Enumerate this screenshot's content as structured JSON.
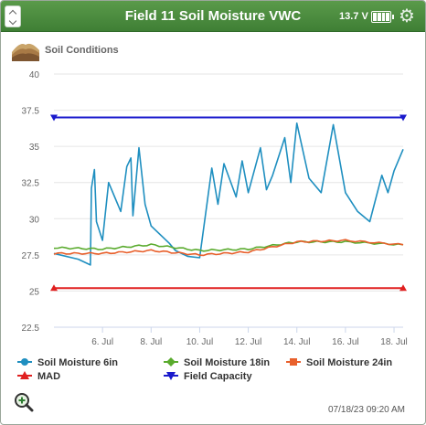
{
  "header": {
    "title": "Field 11 Soil Moisture VWC",
    "voltage": "13.7 V"
  },
  "icons": {
    "collapse": "collapse-chevrons-icon",
    "battery": "battery-icon",
    "settings": "gear-icon",
    "soil": "soil-layers-icon",
    "zoom": "zoom-in-icon"
  },
  "section": {
    "label": "Soil Conditions"
  },
  "footer": {
    "timestamp": "07/18/23 09:20 AM"
  },
  "colors": {
    "header": "#4a8a3e",
    "moisture_6in": "#1f8fc0",
    "moisture_18in": "#5aab2e",
    "moisture_24in": "#e8602c",
    "mad": "#e02020",
    "field_capacity": "#1a1acc"
  },
  "chart_data": {
    "type": "line",
    "x_start": "2023-07-04",
    "x_end": "2023-07-18",
    "x_tick_labels": [
      "6. Jul",
      "8. Jul",
      "10. Jul",
      "12. Jul",
      "14. Jul",
      "16. Jul",
      "18. Jul"
    ],
    "ylim": [
      22.5,
      40
    ],
    "y_ticks": [
      22.5,
      25,
      27.5,
      30,
      32.5,
      35,
      37.5,
      40
    ],
    "grid": true,
    "legend_placement": "bottom",
    "series": [
      {
        "name": "Soil Moisture 6in",
        "color": "#1f8fc0",
        "marker": "circle",
        "x": [
          "07-04",
          "07-05 00:00",
          "07-05 12:00",
          "07-05 13:00",
          "07-05 16:00",
          "07-05 18:00",
          "07-06 00:00",
          "07-06 06:00",
          "07-06 18:00",
          "07-07 00:00",
          "07-07 04:00",
          "07-07 06:00",
          "07-07 12:00",
          "07-07 18:00",
          "07-08 00:00",
          "07-08 18:00",
          "07-09 00:00",
          "07-09 12:00",
          "07-10 00:00",
          "07-10 12:00",
          "07-10 18:00",
          "07-11 00:00",
          "07-11 12:00",
          "07-11 18:00",
          "07-12 00:00",
          "07-12 12:00",
          "07-12 18:00",
          "07-13 00:00",
          "07-13 12:00",
          "07-13 18:00",
          "07-14 00:00",
          "07-14 12:00",
          "07-15 00:00",
          "07-15 12:00",
          "07-16 00:00",
          "07-16 12:00",
          "07-17 00:00",
          "07-17 12:00",
          "07-17 18:00",
          "07-18 00:00",
          "07-18 09:00"
        ],
        "values": [
          27.6,
          27.2,
          26.8,
          32.1,
          33.4,
          29.8,
          28.5,
          32.5,
          30.5,
          33.6,
          34.2,
          30.2,
          34.9,
          31.0,
          29.5,
          28.3,
          27.8,
          27.4,
          27.3,
          33.5,
          31.0,
          33.8,
          31.5,
          34.0,
          31.8,
          34.9,
          32.0,
          33.0,
          35.6,
          32.5,
          36.6,
          32.8,
          31.8,
          36.5,
          31.8,
          30.5,
          29.8,
          33.0,
          31.8,
          33.3,
          34.8
        ]
      },
      {
        "name": "Soil Moisture 18in",
        "color": "#5aab2e",
        "marker": "diamond",
        "x": [
          "07-04",
          "07-06",
          "07-08",
          "07-10",
          "07-12",
          "07-14",
          "07-16",
          "07-18 09:00"
        ],
        "values": [
          28.0,
          27.9,
          28.2,
          27.8,
          27.9,
          28.4,
          28.4,
          28.2
        ]
      },
      {
        "name": "Soil Moisture 24in",
        "color": "#e8602c",
        "marker": "square",
        "x": [
          "07-04",
          "07-06",
          "07-08",
          "07-10",
          "07-12",
          "07-14",
          "07-16",
          "07-18 09:00"
        ],
        "values": [
          27.6,
          27.6,
          27.8,
          27.5,
          27.7,
          28.4,
          28.5,
          28.2
        ]
      },
      {
        "name": "MAD",
        "color": "#e02020",
        "marker": "triangle-up",
        "x": [
          "07-04",
          "07-18 09:00"
        ],
        "values": [
          25.2,
          25.2
        ]
      },
      {
        "name": "Field Capacity",
        "color": "#1a1acc",
        "marker": "triangle-down",
        "x": [
          "07-04",
          "07-18 09:00"
        ],
        "values": [
          37.0,
          37.0
        ]
      }
    ]
  }
}
